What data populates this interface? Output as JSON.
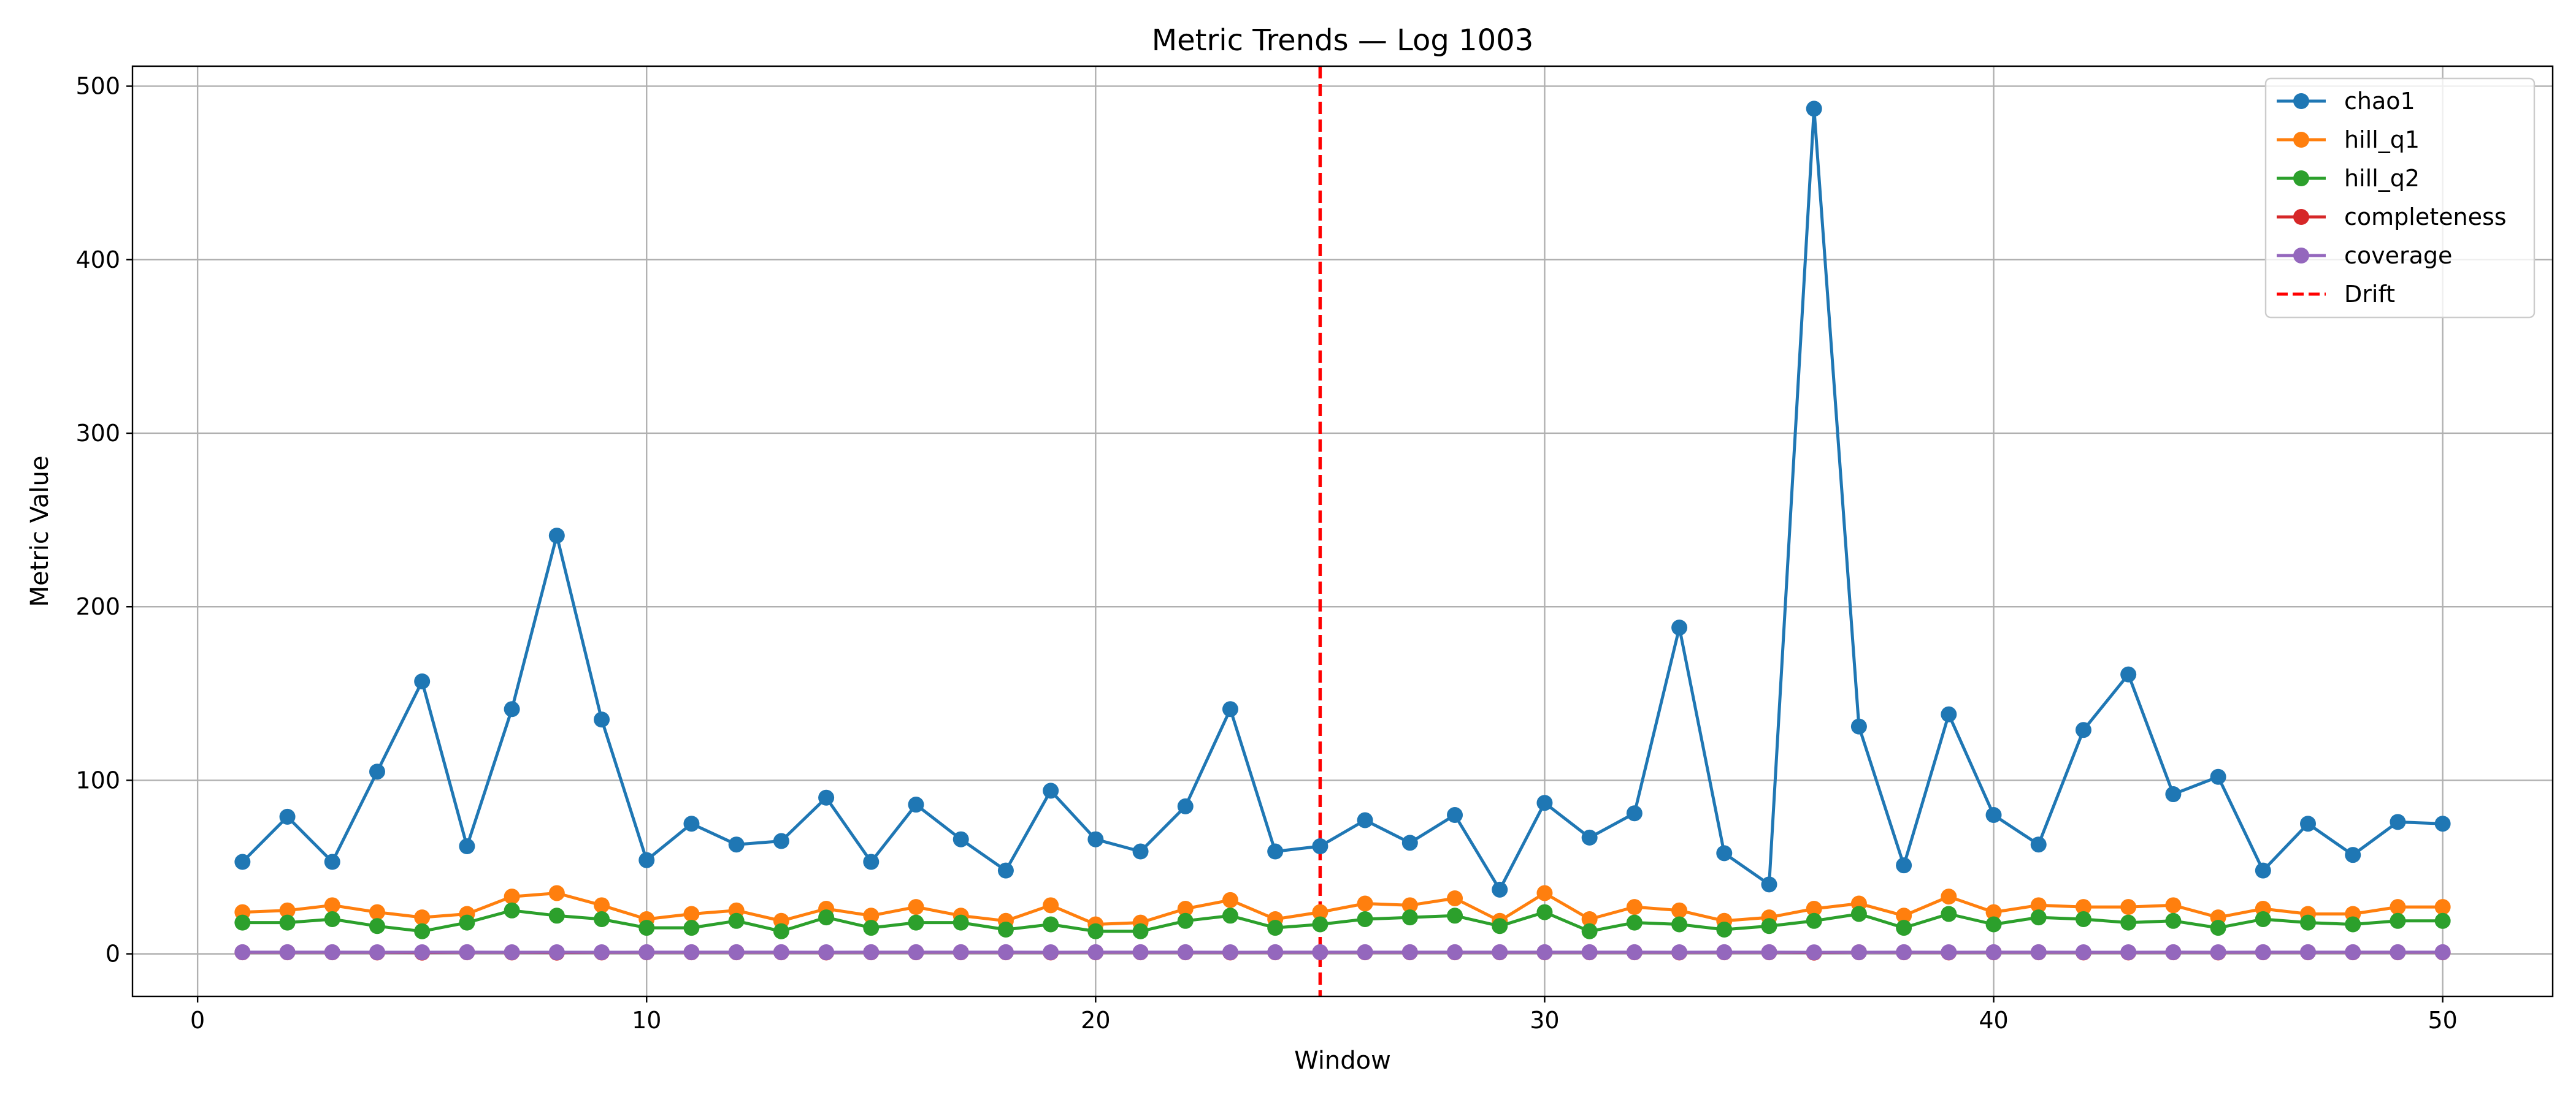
{
  "chart_data": {
    "type": "line",
    "title": "Metric Trends — Log 1003",
    "xlabel": "Window",
    "ylabel": "Metric Value",
    "xlim": [
      -1.45,
      52.45
    ],
    "ylim": [
      -24.5,
      511.5
    ],
    "xticks": [
      0,
      10,
      20,
      30,
      40,
      50
    ],
    "yticks": [
      0,
      100,
      200,
      300,
      400,
      500
    ],
    "grid": true,
    "legend_position": "top-right",
    "x": [
      1,
      2,
      3,
      4,
      5,
      6,
      7,
      8,
      9,
      10,
      11,
      12,
      13,
      14,
      15,
      16,
      17,
      18,
      19,
      20,
      21,
      22,
      23,
      24,
      25,
      26,
      27,
      28,
      29,
      30,
      31,
      32,
      33,
      34,
      35,
      36,
      37,
      38,
      39,
      40,
      41,
      42,
      43,
      44,
      45,
      46,
      47,
      48,
      49,
      50
    ],
    "series": [
      {
        "name": "chao1",
        "color": "#1f77b4",
        "style": "solid",
        "marker": "circle",
        "values": [
          53,
          79,
          53,
          105,
          157,
          62,
          141,
          241,
          135,
          54,
          75,
          63,
          65,
          90,
          53,
          86,
          66,
          48,
          94,
          66,
          59,
          85,
          141,
          59,
          62,
          77,
          64,
          80,
          37,
          87,
          67,
          81,
          188,
          58,
          40,
          487,
          131,
          51,
          138,
          80,
          63,
          129,
          161,
          92,
          102,
          48,
          75,
          57,
          76,
          75
        ]
      },
      {
        "name": "hill_q1",
        "color": "#ff7f0e",
        "style": "solid",
        "marker": "circle",
        "values": [
          24,
          25,
          28,
          24,
          21,
          23,
          33,
          35,
          28,
          20,
          23,
          25,
          19,
          26,
          22,
          27,
          22,
          19,
          28,
          17,
          18,
          26,
          31,
          20,
          24,
          29,
          28,
          32,
          19,
          35,
          20,
          27,
          25,
          19,
          21,
          26,
          29,
          22,
          33,
          24,
          28,
          27,
          27,
          28,
          21,
          26,
          23,
          23,
          27,
          27
        ]
      },
      {
        "name": "hill_q2",
        "color": "#2ca02c",
        "style": "solid",
        "marker": "circle",
        "values": [
          18,
          18,
          20,
          16,
          13,
          18,
          25,
          22,
          20,
          15,
          15,
          19,
          13,
          21,
          15,
          18,
          18,
          14,
          17,
          13,
          13,
          19,
          22,
          15,
          17,
          20,
          21,
          22,
          16,
          24,
          13,
          18,
          17,
          14,
          16,
          19,
          23,
          15,
          23,
          17,
          21,
          20,
          18,
          19,
          15,
          20,
          18,
          17,
          19,
          19
        ]
      },
      {
        "name": "completeness",
        "color": "#d62728",
        "style": "solid",
        "marker": "circle",
        "values": [
          0.9,
          0.9,
          0.9,
          0.8,
          0.7,
          0.9,
          0.8,
          0.7,
          0.8,
          0.9,
          0.9,
          0.9,
          0.9,
          0.8,
          0.9,
          0.9,
          0.9,
          0.9,
          0.8,
          0.9,
          0.9,
          0.9,
          0.8,
          0.9,
          0.9,
          0.9,
          0.9,
          0.9,
          0.9,
          0.9,
          0.9,
          0.9,
          0.8,
          0.9,
          0.9,
          0.7,
          0.9,
          0.9,
          0.8,
          0.9,
          0.9,
          0.8,
          0.8,
          0.9,
          0.8,
          0.9,
          0.9,
          0.9,
          0.9,
          0.9
        ]
      },
      {
        "name": "coverage",
        "color": "#9467bd",
        "style": "solid",
        "marker": "circle",
        "values": [
          0.95,
          0.95,
          0.95,
          0.93,
          0.92,
          0.95,
          0.93,
          0.92,
          0.93,
          0.95,
          0.95,
          0.95,
          0.95,
          0.94,
          0.95,
          0.95,
          0.95,
          0.95,
          0.94,
          0.95,
          0.95,
          0.95,
          0.93,
          0.95,
          0.95,
          0.95,
          0.95,
          0.95,
          0.95,
          0.95,
          0.95,
          0.95,
          0.93,
          0.95,
          0.95,
          0.9,
          0.93,
          0.95,
          0.93,
          0.95,
          0.95,
          0.94,
          0.93,
          0.95,
          0.94,
          0.95,
          0.95,
          0.95,
          0.95,
          0.95
        ]
      }
    ],
    "drift": {
      "name": "Drift",
      "x": 25,
      "color": "#ff0000",
      "style": "dashed"
    }
  }
}
